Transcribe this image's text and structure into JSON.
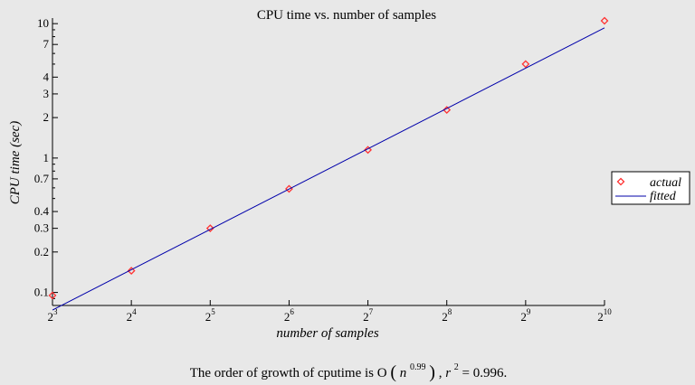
{
  "chart_data": {
    "type": "scatter",
    "title": "CPU time vs. number of samples",
    "xlabel": "number of samples",
    "ylabel": "CPU time (sec)",
    "x_scale": "log2",
    "y_scale": "log10",
    "xlim": [
      8,
      1024
    ],
    "ylim": [
      0.08,
      11
    ],
    "x_ticks": [
      {
        "value": 8,
        "base": "2",
        "exp": "3"
      },
      {
        "value": 16,
        "base": "2",
        "exp": "4"
      },
      {
        "value": 32,
        "base": "2",
        "exp": "5"
      },
      {
        "value": 64,
        "base": "2",
        "exp": "6"
      },
      {
        "value": 128,
        "base": "2",
        "exp": "7"
      },
      {
        "value": 256,
        "base": "2",
        "exp": "8"
      },
      {
        "value": 512,
        "base": "2",
        "exp": "9"
      },
      {
        "value": 1024,
        "base": "2",
        "exp": "10"
      }
    ],
    "y_ticks": [
      {
        "value": 0.1,
        "label": "0.1"
      },
      {
        "value": 0.2,
        "label": "0.2"
      },
      {
        "value": 0.3,
        "label": "0.3"
      },
      {
        "value": 0.4,
        "label": "0.4"
      },
      {
        "value": 0.7,
        "label": "0.7"
      },
      {
        "value": 1,
        "label": "1"
      },
      {
        "value": 2,
        "label": "2"
      },
      {
        "value": 3,
        "label": "3"
      },
      {
        "value": 4,
        "label": "4"
      },
      {
        "value": 7,
        "label": "7"
      },
      {
        "value": 10,
        "label": "10"
      }
    ],
    "series": [
      {
        "name": "actual",
        "kind": "markers",
        "marker": "diamond",
        "color": "#ff3333",
        "x": [
          8,
          16,
          32,
          64,
          128,
          256,
          512,
          1024
        ],
        "y": [
          0.095,
          0.145,
          0.3,
          0.59,
          1.15,
          2.28,
          5.0,
          10.5
        ]
      },
      {
        "name": "fitted",
        "kind": "line",
        "color": "#0000aa",
        "x": [
          8,
          1024
        ],
        "y": [
          0.074,
          9.3
        ]
      }
    ],
    "legend_position": "right",
    "grid": false
  },
  "caption": {
    "prefix": "The order of growth of cputime is O",
    "n": "n",
    "exponent": "0.99",
    "r_symbol": "r",
    "r_exp": "2",
    "r_value": " = 0.996."
  },
  "colors": {
    "background": "#e8e8e8",
    "axis": "#000000",
    "marker": "#ff3333",
    "line": "#0000aa"
  }
}
